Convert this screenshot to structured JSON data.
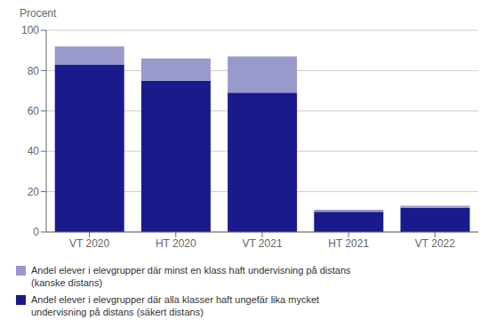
{
  "chart_data": {
    "type": "bar",
    "stacked": true,
    "ylabel": "Procent",
    "categories": [
      "VT 2020",
      "HT 2020",
      "VT 2021",
      "HT 2021",
      "VT 2022"
    ],
    "series": [
      {
        "name": "Andel elever i elevgrupper där alla klasser haft ungefär lika mycket\nundervisning på distans (säkert distans)",
        "color": "#1a1a8c",
        "values": [
          83,
          75,
          69,
          10,
          12
        ]
      },
      {
        "name": "Andel elever i elevgrupper där minst en klass haft undervisning på distans\n(kanske distans)",
        "color": "#9999cc",
        "values": [
          9,
          11,
          18,
          1,
          1
        ]
      }
    ],
    "ylim": [
      0,
      100
    ],
    "yticks": [
      0,
      20,
      40,
      60,
      80,
      100
    ],
    "grid": true,
    "legend": "lower left"
  }
}
